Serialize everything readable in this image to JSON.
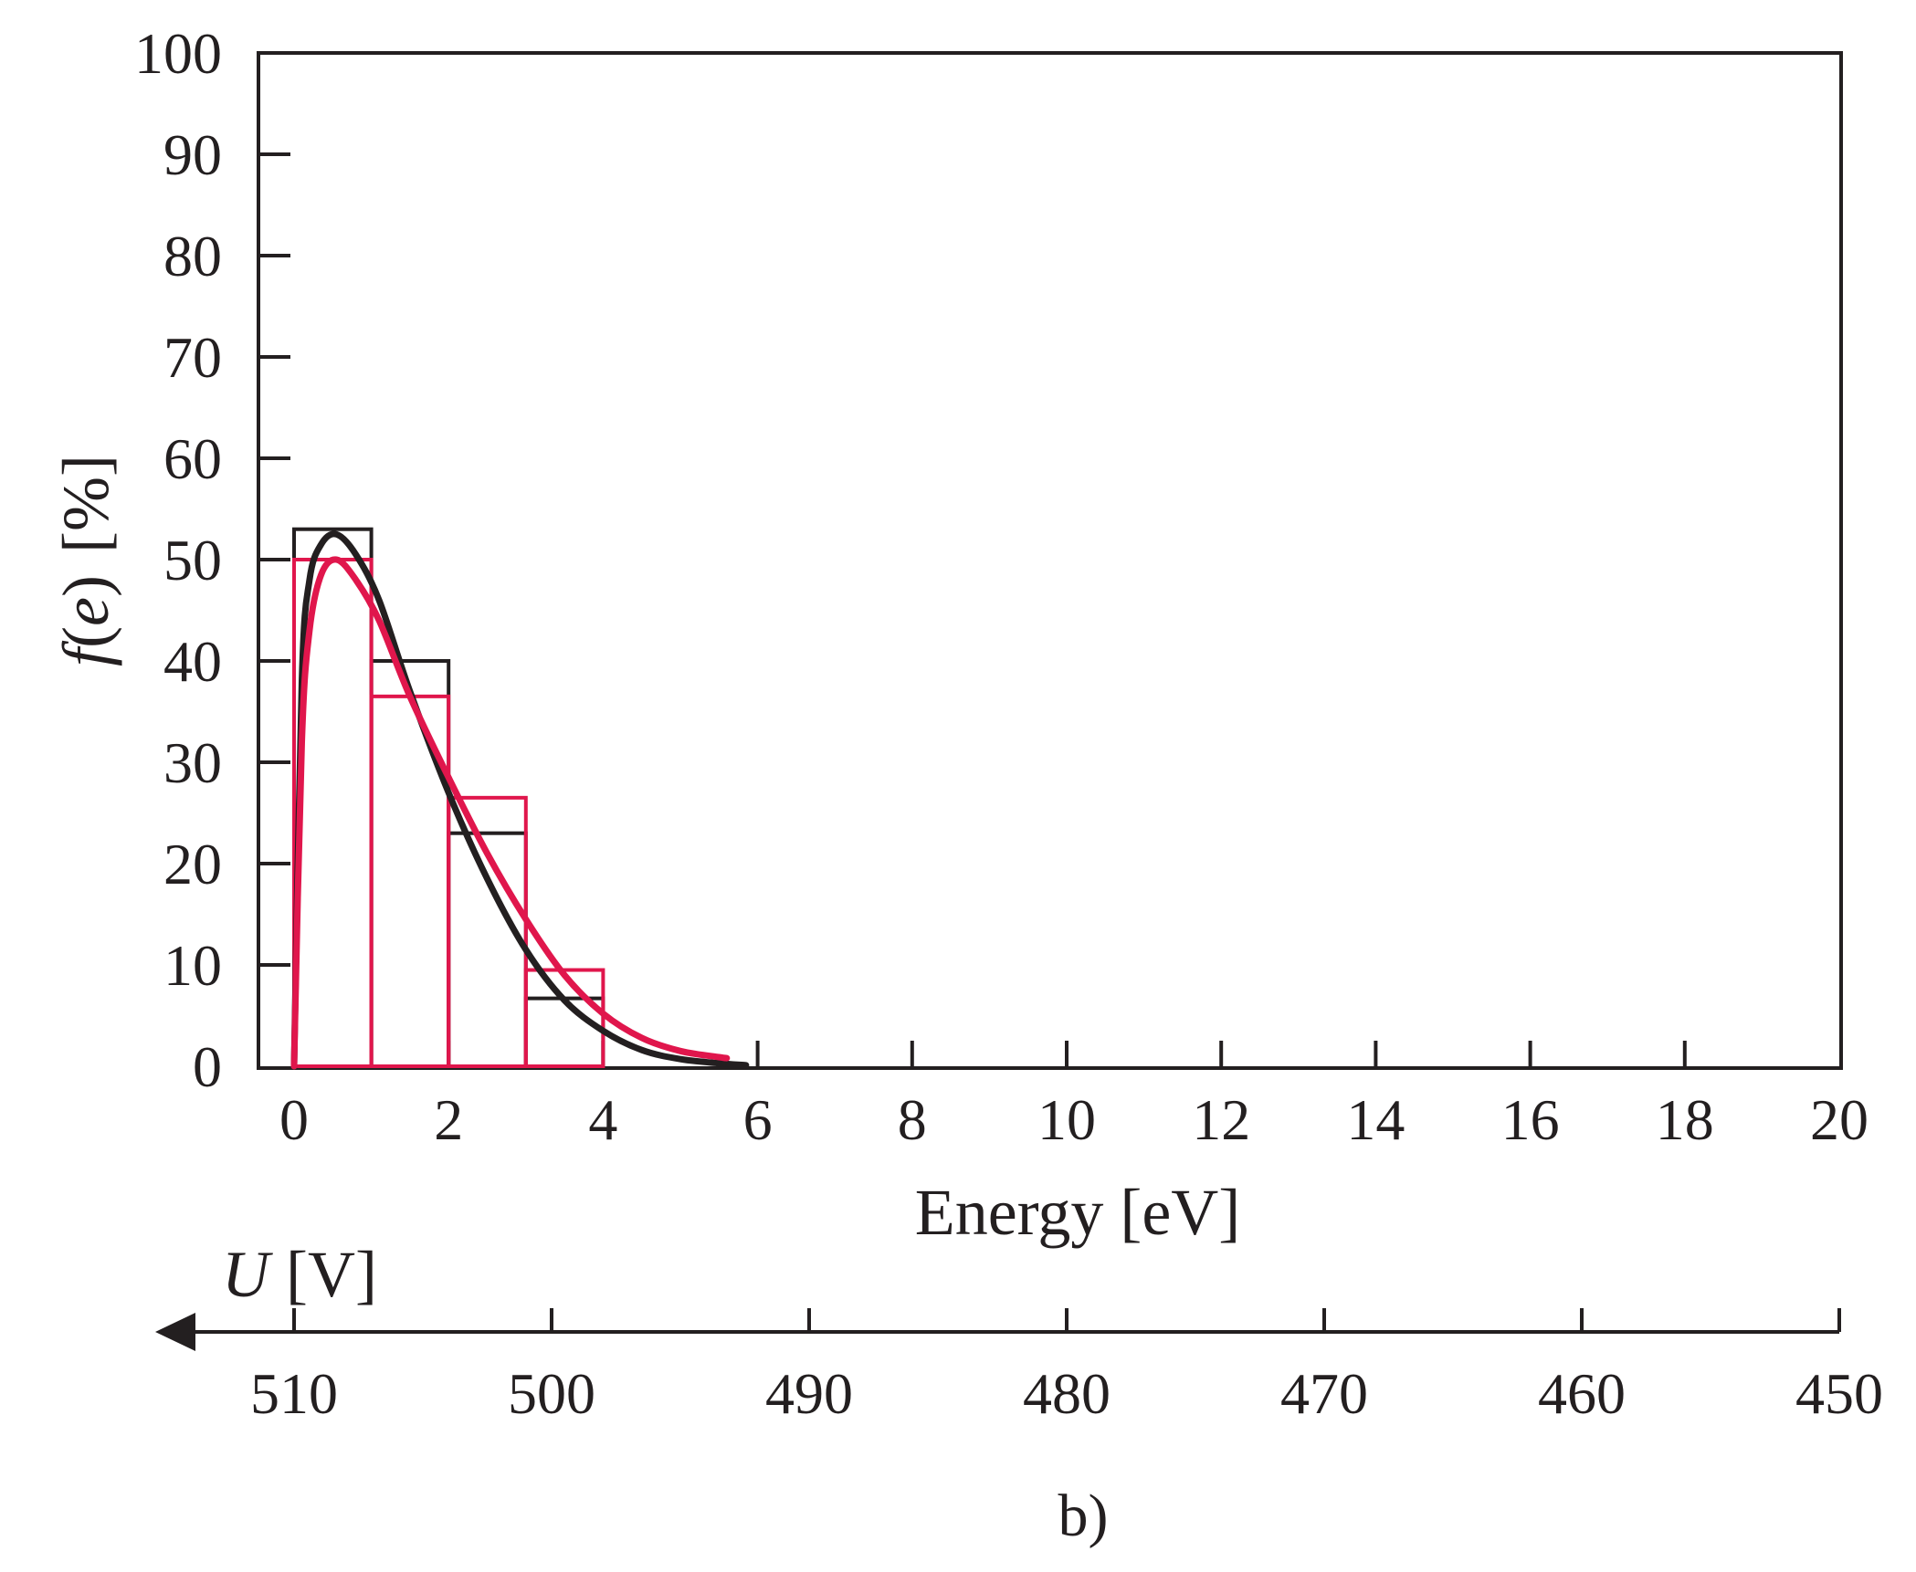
{
  "chart_data": {
    "type": "bar",
    "caption": "b)",
    "ylabel": {
      "func": "f",
      "open": "(",
      "var": "e",
      "close": ")",
      "unit": "[%]"
    },
    "xlabel": "Energy [eV]",
    "xlim": [
      0,
      20
    ],
    "ylim": [
      0,
      100
    ],
    "y_ticks": [
      "0",
      "10",
      "20",
      "30",
      "40",
      "50",
      "60",
      "70",
      "80",
      "90",
      "100"
    ],
    "x_ticks": [
      "0",
      "2",
      "4",
      "6",
      "8",
      "10",
      "12",
      "14",
      "16",
      "18",
      "20"
    ],
    "secondary_axis": {
      "label_var": "U",
      "label_unit": "[V]",
      "ticks": [
        "510",
        "500",
        "490",
        "480",
        "470",
        "460",
        "450"
      ],
      "direction": "decreasing-right"
    },
    "series": [
      {
        "name": "black histogram",
        "color": "#231f20",
        "bins": [
          {
            "x0": 0,
            "x1": 1,
            "value": 53
          },
          {
            "x0": 1,
            "x1": 2,
            "value": 40
          },
          {
            "x0": 2,
            "x1": 3,
            "value": 23
          },
          {
            "x0": 3,
            "x1": 4,
            "value": 6.7
          }
        ]
      },
      {
        "name": "red histogram",
        "color": "#e0164c",
        "bins": [
          {
            "x0": 0,
            "x1": 1,
            "value": 50
          },
          {
            "x0": 1,
            "x1": 2,
            "value": 36.5
          },
          {
            "x0": 2,
            "x1": 3,
            "value": 26.5
          },
          {
            "x0": 3,
            "x1": 4,
            "value": 9.5
          }
        ]
      }
    ],
    "curves": [
      {
        "name": "black fit",
        "color": "#231f20",
        "points": [
          [
            0,
            0
          ],
          [
            0.1,
            38
          ],
          [
            0.2,
            48
          ],
          [
            0.35,
            51.5
          ],
          [
            0.55,
            52.5
          ],
          [
            0.8,
            50.5
          ],
          [
            1.1,
            46
          ],
          [
            1.5,
            37
          ],
          [
            2,
            27
          ],
          [
            2.5,
            18.5
          ],
          [
            3,
            11.5
          ],
          [
            3.5,
            6.5
          ],
          [
            4,
            3.5
          ],
          [
            4.5,
            1.6
          ],
          [
            5,
            0.7
          ],
          [
            5.5,
            0.3
          ],
          [
            5.85,
            0.1
          ]
        ]
      },
      {
        "name": "red fit",
        "color": "#e0164c",
        "points": [
          [
            0,
            0
          ],
          [
            0.1,
            32
          ],
          [
            0.2,
            43
          ],
          [
            0.35,
            48.5
          ],
          [
            0.55,
            50
          ],
          [
            0.8,
            48
          ],
          [
            1.1,
            44
          ],
          [
            1.5,
            36.5
          ],
          [
            2,
            28.5
          ],
          [
            2.5,
            21
          ],
          [
            3,
            14.5
          ],
          [
            3.5,
            9
          ],
          [
            4,
            5.2
          ],
          [
            4.5,
            2.8
          ],
          [
            5,
            1.5
          ],
          [
            5.5,
            0.9
          ],
          [
            5.6,
            0.8
          ]
        ]
      }
    ]
  }
}
